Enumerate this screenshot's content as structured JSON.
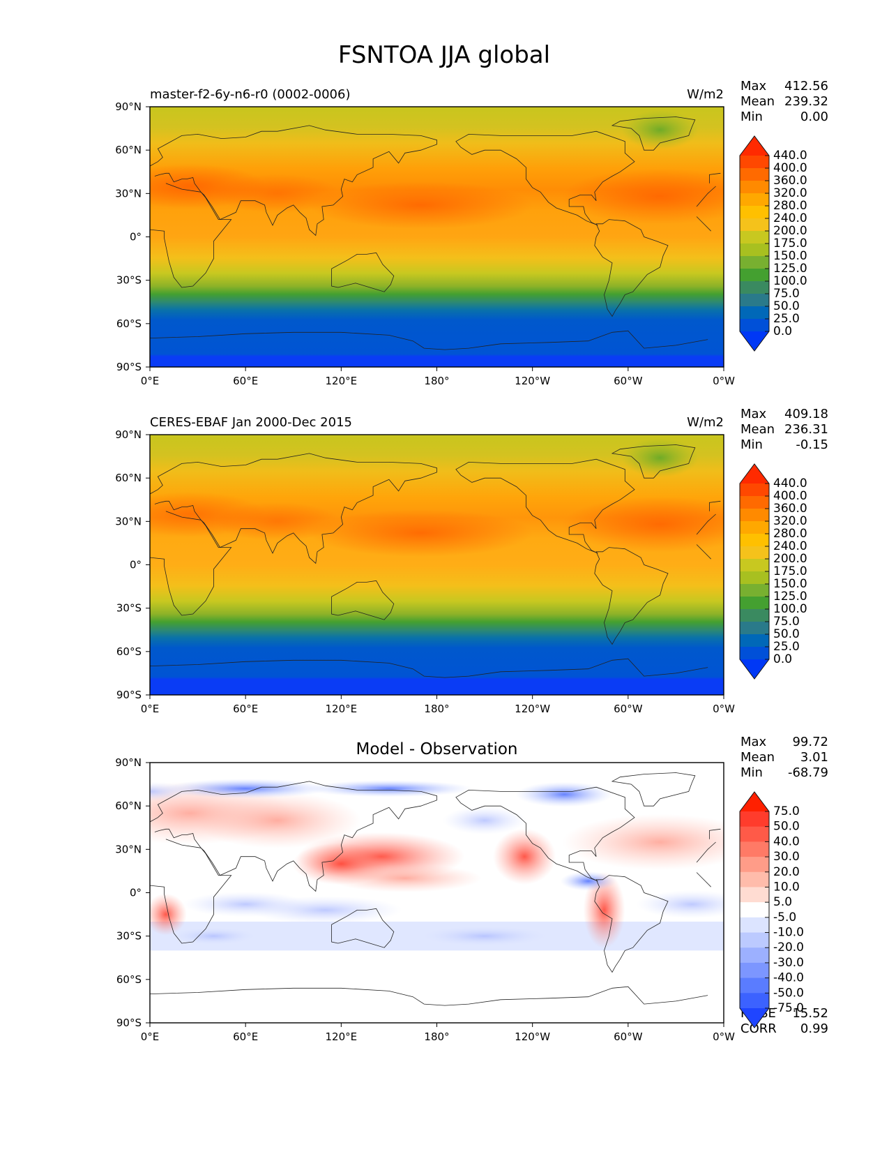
{
  "figure": {
    "title": "FSNTOA JJA global"
  },
  "axes": {
    "lat_ticks": [
      "90°N",
      "60°N",
      "30°N",
      "0°",
      "30°S",
      "60°S",
      "90°S"
    ],
    "lon_ticks": [
      "0°E",
      "60°E",
      "120°E",
      "180°",
      "120°W",
      "60°W",
      "0°W"
    ]
  },
  "panels": [
    {
      "name": "model",
      "left_title": "master-f2-6y-n6-r0 (0002-0006)",
      "center_title": "",
      "units": "W/m2",
      "stats": [
        {
          "label": "Max",
          "value": "412.56"
        },
        {
          "label": "Mean",
          "value": "239.32"
        },
        {
          "label": "Min",
          "value": "0.00"
        }
      ],
      "colorbar": {
        "levels": [
          "440.0",
          "400.0",
          "360.0",
          "320.0",
          "280.0",
          "240.0",
          "200.0",
          "175.0",
          "150.0",
          "125.0",
          "100.0",
          "75.0",
          "50.0",
          "25.0",
          "0.0"
        ],
        "colors": [
          "#ff2a00",
          "#ff4800",
          "#ff6a00",
          "#ff8a00",
          "#ffa800",
          "#ffc000",
          "#f5c21b",
          "#c8c820",
          "#a8c020",
          "#78b030",
          "#44a030",
          "#3a8a60",
          "#2a7a8a",
          "#0068b8",
          "#0050d8",
          "#0038f5"
        ]
      }
    },
    {
      "name": "observation",
      "left_title": "CERES-EBAF Jan 2000-Dec 2015",
      "center_title": "",
      "units": "W/m2",
      "stats": [
        {
          "label": "Max",
          "value": "409.18"
        },
        {
          "label": "Mean",
          "value": "236.31"
        },
        {
          "label": "Min",
          "value": "-0.15"
        }
      ],
      "colorbar": {
        "levels": [
          "440.0",
          "400.0",
          "360.0",
          "320.0",
          "280.0",
          "240.0",
          "200.0",
          "175.0",
          "150.0",
          "125.0",
          "100.0",
          "75.0",
          "50.0",
          "25.0",
          "0.0"
        ],
        "colors": [
          "#ff2a00",
          "#ff4800",
          "#ff6a00",
          "#ff8a00",
          "#ffa800",
          "#ffc000",
          "#f5c21b",
          "#c8c820",
          "#a8c020",
          "#78b030",
          "#44a030",
          "#3a8a60",
          "#2a7a8a",
          "#0068b8",
          "#0050d8",
          "#0038f5"
        ]
      }
    },
    {
      "name": "difference",
      "left_title": "",
      "center_title": "Model - Observation",
      "units": "",
      "stats": [
        {
          "label": "Max",
          "value": "99.72"
        },
        {
          "label": "Mean",
          "value": "3.01"
        },
        {
          "label": "Min",
          "value": "-68.79"
        }
      ],
      "extra_stats": [
        {
          "label": "RMSE",
          "value": "15.52"
        },
        {
          "label": "CORR",
          "value": "0.99"
        }
      ],
      "colorbar": {
        "levels": [
          "75.0",
          "50.0",
          "40.0",
          "30.0",
          "20.0",
          "10.0",
          "5.0",
          "-5.0",
          "-10.0",
          "-20.0",
          "-30.0",
          "-40.0",
          "-50.0",
          "-75.0"
        ],
        "colors": [
          "#ff2000",
          "#ff3c2c",
          "#ff5a48",
          "#ff7a66",
          "#ff9c88",
          "#ffbcab",
          "#ffdcd2",
          "#ffffff",
          "#dce4ff",
          "#bccaff",
          "#9cb0ff",
          "#7c96ff",
          "#5a7cff",
          "#3c62ff",
          "#1f45ff"
        ]
      }
    }
  ]
}
